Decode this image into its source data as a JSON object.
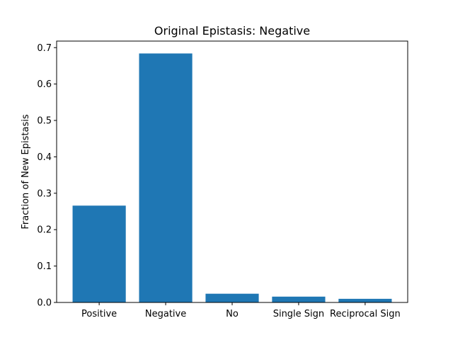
{
  "chart_data": {
    "type": "bar",
    "title": "Original Epistasis: Negative",
    "xlabel": "",
    "ylabel": "Fraction of New Epistasis",
    "categories": [
      "Positive",
      "Negative",
      "No",
      "Single Sign",
      "Reciprocal Sign"
    ],
    "values": [
      0.266,
      0.684,
      0.024,
      0.016,
      0.01
    ],
    "ylim": [
      0,
      0.718
    ],
    "yticks": [
      0.0,
      0.1,
      0.2,
      0.3,
      0.4,
      0.5,
      0.6,
      0.7
    ],
    "ytick_labels": [
      "0.0",
      "0.1",
      "0.2",
      "0.3",
      "0.4",
      "0.5",
      "0.6",
      "0.7"
    ],
    "bar_color": "#1f77b4",
    "grid": false,
    "legend": "none"
  }
}
